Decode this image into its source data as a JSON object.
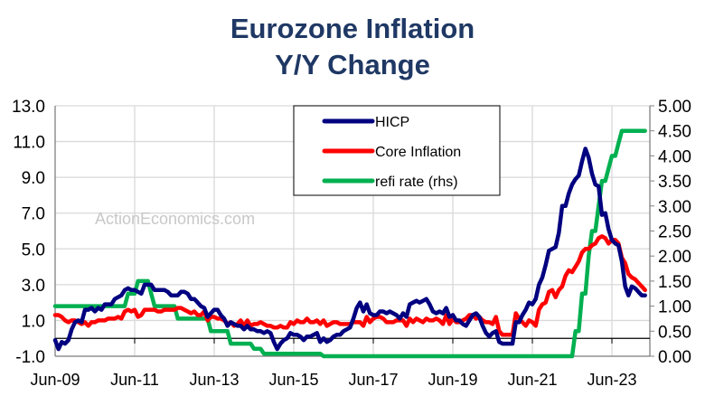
{
  "chart_data": {
    "type": "line",
    "title": "Eurozone Inflation",
    "subtitle": "Y/Y Change",
    "watermark": "ActionEconomics.com",
    "xlabel": "",
    "ylabel": "",
    "y2label": "",
    "x_ticks": [
      "Jun-09",
      "Jun-11",
      "Jun-13",
      "Jun-15",
      "Jun-17",
      "Jun-19",
      "Jun-21",
      "Jun-23"
    ],
    "y_ticks": [
      "13.0",
      "11.0",
      "9.0",
      "7.0",
      "5.0",
      "3.0",
      "1.0",
      "-1.0"
    ],
    "y2_ticks": [
      "5.00",
      "4.50",
      "4.00",
      "3.50",
      "3.00",
      "2.50",
      "2.00",
      "1.50",
      "1.00",
      "0.50",
      "0.00"
    ],
    "ylim": [
      -1,
      13
    ],
    "y2lim": [
      0,
      5
    ],
    "grid": true,
    "legend_position": "top-center",
    "x": [
      "2009-06",
      "2009-07",
      "2009-08",
      "2009-09",
      "2009-10",
      "2009-11",
      "2009-12",
      "2010-01",
      "2010-02",
      "2010-03",
      "2010-04",
      "2010-05",
      "2010-06",
      "2010-07",
      "2010-08",
      "2010-09",
      "2010-10",
      "2010-11",
      "2010-12",
      "2011-01",
      "2011-02",
      "2011-03",
      "2011-04",
      "2011-05",
      "2011-06",
      "2011-07",
      "2011-08",
      "2011-09",
      "2011-10",
      "2011-11",
      "2011-12",
      "2012-01",
      "2012-02",
      "2012-03",
      "2012-04",
      "2012-05",
      "2012-06",
      "2012-07",
      "2012-08",
      "2012-09",
      "2012-10",
      "2012-11",
      "2012-12",
      "2013-01",
      "2013-02",
      "2013-03",
      "2013-04",
      "2013-05",
      "2013-06",
      "2013-07",
      "2013-08",
      "2013-09",
      "2013-10",
      "2013-11",
      "2013-12",
      "2014-01",
      "2014-02",
      "2014-03",
      "2014-04",
      "2014-05",
      "2014-06",
      "2014-07",
      "2014-08",
      "2014-09",
      "2014-10",
      "2014-11",
      "2014-12",
      "2015-01",
      "2015-02",
      "2015-03",
      "2015-04",
      "2015-05",
      "2015-06",
      "2015-07",
      "2015-08",
      "2015-09",
      "2015-10",
      "2015-11",
      "2015-12",
      "2016-01",
      "2016-02",
      "2016-03",
      "2016-04",
      "2016-05",
      "2016-06",
      "2016-07",
      "2016-08",
      "2016-09",
      "2016-10",
      "2016-11",
      "2016-12",
      "2017-01",
      "2017-02",
      "2017-03",
      "2017-04",
      "2017-05",
      "2017-06",
      "2017-07",
      "2017-08",
      "2017-09",
      "2017-10",
      "2017-11",
      "2017-12",
      "2018-01",
      "2018-02",
      "2018-03",
      "2018-04",
      "2018-05",
      "2018-06",
      "2018-07",
      "2018-08",
      "2018-09",
      "2018-10",
      "2018-11",
      "2018-12",
      "2019-01",
      "2019-02",
      "2019-03",
      "2019-04",
      "2019-05",
      "2019-06",
      "2019-07",
      "2019-08",
      "2019-09",
      "2019-10",
      "2019-11",
      "2019-12",
      "2020-01",
      "2020-02",
      "2020-03",
      "2020-04",
      "2020-05",
      "2020-06",
      "2020-07",
      "2020-08",
      "2020-09",
      "2020-10",
      "2020-11",
      "2020-12",
      "2021-01",
      "2021-02",
      "2021-03",
      "2021-04",
      "2021-05",
      "2021-06",
      "2021-07",
      "2021-08",
      "2021-09",
      "2021-10",
      "2021-11",
      "2021-12",
      "2022-01",
      "2022-02",
      "2022-03",
      "2022-04",
      "2022-05",
      "2022-06",
      "2022-07",
      "2022-08",
      "2022-09",
      "2022-10",
      "2022-11",
      "2022-12",
      "2023-01",
      "2023-02",
      "2023-03",
      "2023-04",
      "2023-05",
      "2023-06",
      "2023-07",
      "2023-08",
      "2023-09",
      "2023-10",
      "2023-11",
      "2023-12",
      "2024-01",
      "2024-02",
      "2024-03",
      "2024-04"
    ],
    "series": [
      {
        "name": "HICP",
        "axis": "left",
        "color": "#000080",
        "values": [
          -0.1,
          -0.6,
          -0.2,
          -0.3,
          -0.1,
          0.5,
          0.9,
          1.0,
          0.9,
          1.6,
          1.6,
          1.7,
          1.5,
          1.7,
          1.6,
          1.9,
          1.9,
          1.9,
          2.2,
          2.3,
          2.4,
          2.7,
          2.8,
          2.7,
          2.7,
          2.6,
          2.5,
          3.0,
          3.0,
          3.0,
          2.7,
          2.7,
          2.7,
          2.7,
          2.6,
          2.4,
          2.4,
          2.4,
          2.6,
          2.6,
          2.5,
          2.2,
          2.2,
          2.0,
          1.8,
          1.7,
          1.2,
          1.4,
          1.6,
          1.6,
          1.3,
          1.1,
          0.7,
          0.9,
          0.8,
          0.7,
          0.7,
          0.5,
          0.7,
          0.5,
          0.5,
          0.4,
          0.4,
          0.3,
          0.4,
          0.3,
          -0.2,
          -0.6,
          -0.3,
          -0.1,
          0.0,
          0.3,
          0.2,
          0.2,
          0.1,
          -0.1,
          0.1,
          0.1,
          0.2,
          0.3,
          -0.2,
          0.0,
          -0.2,
          -0.1,
          0.1,
          0.2,
          0.2,
          0.4,
          0.5,
          0.6,
          1.1,
          1.7,
          2.0,
          1.5,
          1.9,
          1.4,
          1.3,
          1.3,
          1.5,
          1.5,
          1.4,
          1.5,
          1.4,
          1.3,
          1.1,
          1.4,
          1.2,
          1.9,
          2.0,
          2.1,
          2.0,
          2.1,
          2.2,
          1.9,
          1.5,
          1.4,
          1.5,
          1.4,
          1.7,
          1.2,
          1.3,
          1.0,
          1.0,
          0.8,
          0.7,
          1.0,
          1.3,
          1.4,
          1.2,
          0.7,
          0.3,
          0.1,
          0.3,
          0.4,
          -0.2,
          -0.3,
          -0.3,
          -0.3,
          -0.3,
          0.9,
          0.9,
          1.3,
          1.6,
          2.0,
          1.9,
          2.2,
          3.0,
          3.4,
          4.1,
          4.9,
          5.0,
          5.1,
          5.9,
          7.4,
          7.4,
          8.1,
          8.6,
          8.9,
          9.1,
          9.9,
          10.6,
          10.1,
          9.2,
          8.6,
          8.5,
          6.9,
          7.0,
          6.1,
          5.5,
          5.3,
          5.2,
          4.3,
          2.9,
          2.4,
          2.9,
          2.8,
          2.6,
          2.4,
          2.4
        ]
      },
      {
        "name": "Core Inflation",
        "axis": "left",
        "color": "#ff0000",
        "values": [
          1.3,
          1.3,
          1.2,
          1.0,
          0.9,
          1.0,
          1.0,
          0.9,
          0.8,
          0.9,
          0.7,
          0.9,
          0.9,
          1.0,
          1.0,
          1.0,
          1.1,
          1.1,
          1.1,
          1.2,
          1.1,
          1.5,
          1.6,
          1.5,
          1.6,
          1.2,
          1.3,
          1.6,
          1.6,
          1.6,
          1.6,
          1.5,
          1.5,
          1.6,
          1.6,
          1.6,
          1.6,
          1.7,
          1.7,
          1.6,
          1.5,
          1.4,
          1.5,
          1.3,
          1.3,
          1.5,
          1.0,
          1.2,
          1.2,
          1.1,
          1.1,
          1.0,
          0.8,
          0.9,
          0.7,
          0.8,
          1.0,
          0.7,
          1.0,
          0.7,
          0.8,
          0.8,
          0.9,
          0.8,
          0.7,
          0.7,
          0.6,
          0.6,
          0.7,
          0.6,
          0.6,
          0.9,
          0.8,
          1.0,
          0.9,
          0.9,
          1.1,
          0.9,
          0.9,
          1.0,
          0.8,
          1.0,
          0.7,
          0.8,
          0.9,
          0.9,
          0.8,
          0.8,
          0.8,
          0.8,
          0.9,
          0.9,
          0.9,
          0.7,
          1.2,
          0.9,
          1.1,
          1.2,
          1.2,
          1.1,
          0.9,
          0.9,
          0.9,
          1.0,
          1.0,
          1.0,
          0.7,
          1.1,
          0.9,
          1.1,
          1.0,
          0.9,
          1.1,
          1.0,
          1.0,
          1.1,
          1.0,
          0.8,
          1.3,
          0.8,
          1.1,
          0.9,
          0.9,
          1.0,
          1.1,
          1.3,
          1.3,
          1.1,
          1.2,
          1.0,
          0.9,
          0.9,
          0.8,
          1.2,
          0.4,
          0.2,
          0.2,
          0.2,
          0.2,
          1.4,
          1.1,
          0.9,
          0.7,
          1.0,
          0.9,
          0.7,
          1.6,
          1.9,
          2.0,
          2.6,
          2.7,
          2.3,
          2.7,
          2.9,
          3.5,
          3.8,
          3.7,
          4.0,
          4.3,
          4.8,
          5.0,
          5.0,
          5.2,
          5.3,
          5.6,
          5.7,
          5.6,
          5.3,
          5.5,
          5.5,
          5.3,
          4.5,
          4.2,
          3.6,
          3.4,
          3.3,
          3.1,
          2.9,
          2.7
        ]
      },
      {
        "name": "refi rate (rhs)",
        "axis": "right",
        "color": "#00b050",
        "values": [
          1.0,
          1.0,
          1.0,
          1.0,
          1.0,
          1.0,
          1.0,
          1.0,
          1.0,
          1.0,
          1.0,
          1.0,
          1.0,
          1.0,
          1.0,
          1.0,
          1.0,
          1.0,
          1.0,
          1.0,
          1.0,
          1.0,
          1.25,
          1.25,
          1.25,
          1.5,
          1.5,
          1.5,
          1.5,
          1.25,
          1.0,
          1.0,
          1.0,
          1.0,
          1.0,
          1.0,
          1.0,
          0.75,
          0.75,
          0.75,
          0.75,
          0.75,
          0.75,
          0.75,
          0.75,
          0.75,
          0.75,
          0.5,
          0.5,
          0.5,
          0.5,
          0.5,
          0.5,
          0.25,
          0.25,
          0.25,
          0.25,
          0.25,
          0.25,
          0.25,
          0.15,
          0.15,
          0.15,
          0.05,
          0.05,
          0.05,
          0.05,
          0.05,
          0.05,
          0.05,
          0.05,
          0.05,
          0.05,
          0.05,
          0.05,
          0.05,
          0.05,
          0.05,
          0.05,
          0.05,
          0.05,
          0.0,
          0.0,
          0.0,
          0.0,
          0.0,
          0.0,
          0.0,
          0.0,
          0.0,
          0.0,
          0,
          0,
          0,
          0,
          0,
          0,
          0,
          0,
          0,
          0,
          0,
          0,
          0,
          0,
          0,
          0,
          0,
          0,
          0,
          0,
          0,
          0,
          0,
          0,
          0,
          0,
          0,
          0,
          0,
          0,
          0,
          0,
          0,
          0,
          0,
          0,
          0,
          0,
          0,
          0,
          0,
          0,
          0,
          0,
          0,
          0,
          0,
          0,
          0,
          0,
          0,
          0,
          0,
          0,
          0,
          0,
          0,
          0,
          0,
          0,
          0,
          0,
          0,
          0,
          0,
          0,
          0.5,
          0.5,
          1.25,
          1.25,
          2.0,
          2.5,
          2.5,
          3.0,
          3.5,
          3.5,
          3.75,
          4.0,
          4.0,
          4.25,
          4.5,
          4.5,
          4.5,
          4.5,
          4.5,
          4.5,
          4.5,
          4.5
        ]
      }
    ]
  }
}
